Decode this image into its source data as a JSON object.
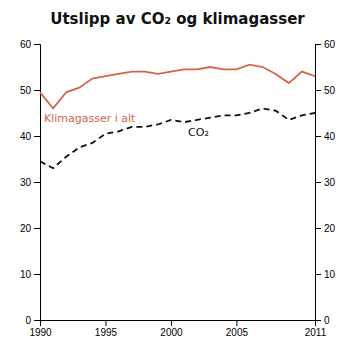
{
  "chart_data": {
    "type": "line",
    "title": "Utslipp av CO₂ og klimagasser",
    "x": [
      1990,
      1991,
      1992,
      1993,
      1994,
      1995,
      1996,
      1997,
      1998,
      1999,
      2000,
      2001,
      2002,
      2003,
      2004,
      2005,
      2006,
      2007,
      2008,
      2009,
      2010,
      2011
    ],
    "series": [
      {
        "name": "Klimagasser i alt",
        "color": "#d4644a",
        "line_style": "solid",
        "values": [
          49.5,
          46.0,
          49.5,
          50.5,
          52.5,
          53.0,
          53.5,
          54.0,
          54.0,
          53.5,
          54.0,
          54.5,
          54.5,
          55.0,
          54.5,
          54.5,
          55.5,
          55.0,
          53.5,
          51.5,
          54.0,
          53.0
        ]
      },
      {
        "name": "CO₂",
        "color": "#111111",
        "line_style": "dashed",
        "values": [
          34.5,
          33.0,
          35.5,
          37.5,
          38.5,
          40.5,
          41.0,
          42.0,
          42.0,
          42.5,
          43.5,
          43.0,
          43.5,
          44.0,
          44.5,
          44.5,
          45.0,
          46.0,
          45.5,
          43.5,
          44.5,
          45.0
        ]
      }
    ],
    "xlim": [
      1990,
      2011
    ],
    "xticks": [
      1990,
      1995,
      2000,
      2005,
      2011
    ],
    "ylim": [
      0,
      60
    ],
    "yticks": [
      0,
      10,
      20,
      30,
      40,
      50,
      60
    ],
    "y2lim": [
      0,
      60
    ],
    "y2ticks": [
      0,
      10,
      20,
      30,
      40,
      50,
      60
    ],
    "grid": false
  }
}
